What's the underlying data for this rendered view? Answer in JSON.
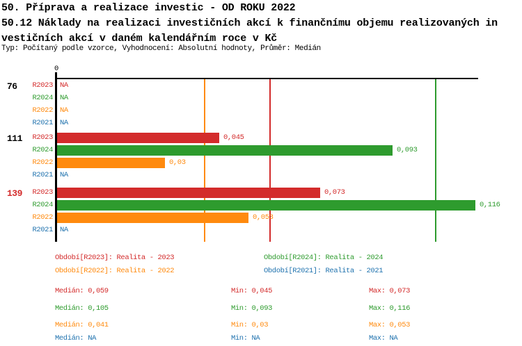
{
  "header": {
    "line1": "50. Příprava a realizace investic - OD ROKU 2022",
    "line2": "50.12 Náklady na realizaci investičních akcí k finančnímu objemu realizovaných in",
    "line3": "vestičních akcí v daném kalendářním roce v Kč",
    "meta": "Typ: Počítaný podle vzorce, Vyhodnocení: Absolutní hodnoty, Průměr: Medián"
  },
  "colors": {
    "R2023": "#d32b2b",
    "R2024": "#2e9b2e",
    "R2022": "#ff8a0e",
    "R2021": "#1f72ae",
    "group_default": "#000000",
    "group_highlight": "#d32b2b",
    "axis": "#000000"
  },
  "chart_data": {
    "type": "bar",
    "orientation": "horizontal",
    "title": "50.12 Náklady na realizaci investičních akcí k finančnímu objemu realizovaných investičních akcí v daném kalendářním roce v Kč",
    "axis": {
      "zero_label": "0",
      "na_label": "NA",
      "xlim": [
        0,
        0.118
      ],
      "grid": "median-lines-only"
    },
    "series_order": [
      "R2023",
      "R2024",
      "R2022",
      "R2021"
    ],
    "groups": [
      {
        "label": "76",
        "highlight": false,
        "rows": [
          {
            "series": "R2023",
            "value": null,
            "display": "NA"
          },
          {
            "series": "R2024",
            "value": null,
            "display": "NA"
          },
          {
            "series": "R2022",
            "value": null,
            "display": "NA"
          },
          {
            "series": "R2021",
            "value": null,
            "display": "NA"
          }
        ]
      },
      {
        "label": "111",
        "highlight": false,
        "rows": [
          {
            "series": "R2023",
            "value": 0.045,
            "display": "0,045"
          },
          {
            "series": "R2024",
            "value": 0.093,
            "display": "0,093"
          },
          {
            "series": "R2022",
            "value": 0.03,
            "display": "0,03"
          },
          {
            "series": "R2021",
            "value": null,
            "display": "NA"
          }
        ]
      },
      {
        "label": "139",
        "highlight": true,
        "rows": [
          {
            "series": "R2023",
            "value": 0.073,
            "display": "0,073"
          },
          {
            "series": "R2024",
            "value": 0.116,
            "display": "0,116"
          },
          {
            "series": "R2022",
            "value": 0.053,
            "display": "0,053"
          },
          {
            "series": "R2021",
            "value": null,
            "display": "NA"
          }
        ]
      }
    ],
    "median_lines": [
      {
        "series": "R2022",
        "value": 0.041
      },
      {
        "series": "R2023",
        "value": 0.059
      },
      {
        "series": "R2024",
        "value": 0.105
      }
    ]
  },
  "legend": {
    "items": [
      {
        "series": "R2023",
        "label": "Období[R2023]: Realita - 2023",
        "col": 0,
        "row": 0
      },
      {
        "series": "R2024",
        "label": "Období[R2024]: Realita - 2024",
        "col": 1,
        "row": 0
      },
      {
        "series": "R2022",
        "label": "Období[R2022]: Realita - 2022",
        "col": 0,
        "row": 1
      },
      {
        "series": "R2021",
        "label": "Období[R2021]: Realita - 2021",
        "col": 1,
        "row": 1
      }
    ]
  },
  "stats": {
    "labels": {
      "median": "Medián",
      "min": "Min",
      "max": "Max"
    },
    "rows": [
      {
        "series": "R2023",
        "median": "0,059",
        "min": "0,045",
        "max": "0,073"
      },
      {
        "series": "R2024",
        "median": "0,105",
        "min": "0,093",
        "max": "0,116"
      },
      {
        "series": "R2022",
        "median": "0,041",
        "min": "0,03",
        "max": "0,053"
      },
      {
        "series": "R2021",
        "median": "NA",
        "min": "NA",
        "max": "NA"
      }
    ]
  }
}
